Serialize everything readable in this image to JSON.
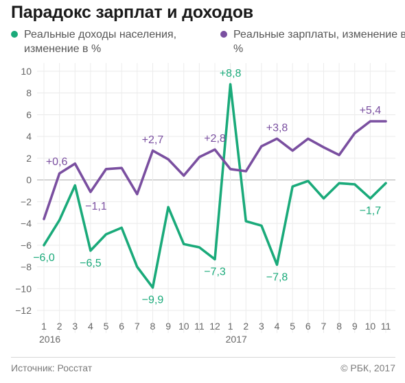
{
  "title": "Парадокс зарплат и доходов",
  "source": "Источник: Росстат",
  "copyright": "© РБК, 2017",
  "colors": {
    "incomes": "#1aaa7a",
    "wages": "#7a4fa0"
  },
  "legend": [
    {
      "name": "Реальные доходы населения, изменение в %",
      "color": "#1aaa7a"
    },
    {
      "name": "Реальные зарплаты, изменение в %",
      "color": "#7a4fa0"
    }
  ],
  "chart_data": {
    "type": "line",
    "title": "Парадокс зарплат и доходов",
    "xlabel": "",
    "ylabel": "",
    "ylim": [
      -12,
      10
    ],
    "yticks": [
      -12,
      -10,
      -8,
      -6,
      -4,
      -2,
      0,
      2,
      4,
      6,
      8,
      10
    ],
    "grid": true,
    "legend_position": "top",
    "categories": [
      "1",
      "2",
      "3",
      "4",
      "5",
      "6",
      "7",
      "8",
      "9",
      "10",
      "11",
      "12",
      "1",
      "2",
      "3",
      "4",
      "5",
      "6",
      "7",
      "8",
      "9",
      "10",
      "11"
    ],
    "year_labels": [
      {
        "index": 0,
        "label": "2016"
      },
      {
        "index": 12,
        "label": "2017"
      }
    ],
    "series": [
      {
        "name": "Реальные доходы населения, изменение в %",
        "color": "#1aaa7a",
        "values": [
          -6.0,
          -3.7,
          -0.5,
          -6.5,
          -5.0,
          -4.4,
          -8.0,
          -9.9,
          -2.5,
          -5.9,
          -6.2,
          -7.3,
          8.8,
          -3.8,
          -4.2,
          -7.8,
          -0.6,
          -0.1,
          -1.7,
          -0.3,
          -0.4,
          -1.7,
          -0.3
        ],
        "annotations": [
          {
            "index": 0,
            "text": "−6,0",
            "pos": "below"
          },
          {
            "index": 3,
            "text": "−6,5",
            "pos": "below"
          },
          {
            "index": 7,
            "text": "−9,9",
            "pos": "below"
          },
          {
            "index": 11,
            "text": "−7,3",
            "pos": "below"
          },
          {
            "index": 12,
            "text": "+8,8",
            "pos": "above"
          },
          {
            "index": 15,
            "text": "−7,8",
            "pos": "below"
          },
          {
            "index": 21,
            "text": "−1,7",
            "pos": "below"
          }
        ]
      },
      {
        "name": "Реальные зарплаты, изменение в %",
        "color": "#7a4fa0",
        "values": [
          -3.6,
          0.6,
          1.5,
          -1.1,
          1.0,
          1.1,
          -1.3,
          2.7,
          1.9,
          0.4,
          2.1,
          2.8,
          1.0,
          0.8,
          3.1,
          3.8,
          2.7,
          3.8,
          3.0,
          2.3,
          4.3,
          5.4,
          5.4
        ],
        "annotations": [
          {
            "index": 1,
            "text": "+0,6",
            "pos": "above-left"
          },
          {
            "index": 3,
            "text": "−1,1",
            "pos": "below-right"
          },
          {
            "index": 7,
            "text": "+2,7",
            "pos": "above"
          },
          {
            "index": 11,
            "text": "+2,8",
            "pos": "above"
          },
          {
            "index": 15,
            "text": "+3,8",
            "pos": "above"
          },
          {
            "index": 21,
            "text": "+5,4",
            "pos": "above"
          }
        ]
      }
    ]
  }
}
